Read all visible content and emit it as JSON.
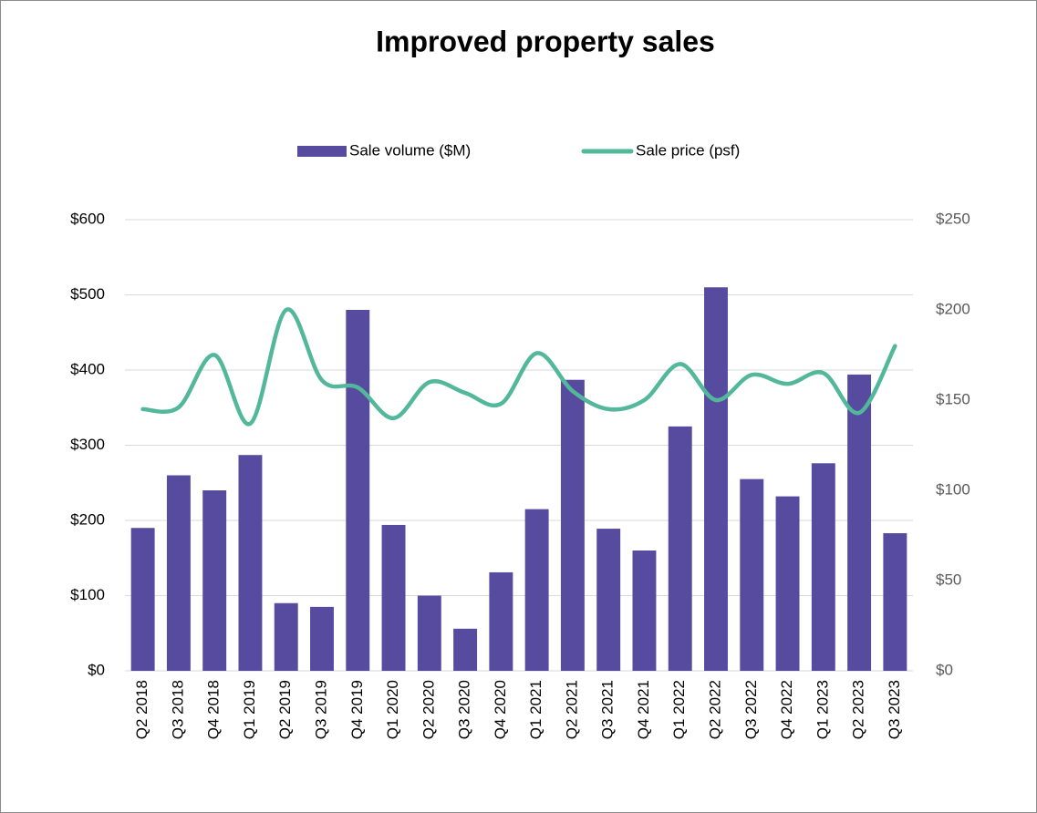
{
  "chart_data": {
    "type": "combo",
    "title": "Improved property sales",
    "categories": [
      "Q2 2018",
      "Q3 2018",
      "Q4 2018",
      "Q1 2019",
      "Q2 2019",
      "Q3 2019",
      "Q4 2019",
      "Q1 2020",
      "Q2 2020",
      "Q3 2020",
      "Q4 2020",
      "Q1 2021",
      "Q2 2021",
      "Q3 2021",
      "Q4 2021",
      "Q1 2022",
      "Q2 2022",
      "Q3 2022",
      "Q4 2022",
      "Q1 2023",
      "Q2 2023",
      "Q3 2023"
    ],
    "series": [
      {
        "name": "Sale volume ($M)",
        "type": "bar",
        "color": "#574b9f",
        "values": [
          190,
          260,
          240,
          287,
          90,
          85,
          480,
          194,
          100,
          56,
          131,
          215,
          387,
          189,
          160,
          325,
          510,
          255,
          232,
          276,
          394,
          183
        ]
      },
      {
        "name": "Sale price (psf)",
        "type": "line",
        "axis": "y2",
        "color": "#52b79b",
        "values": [
          145,
          146,
          175,
          137,
          200,
          161,
          157,
          140,
          160,
          154,
          148,
          176,
          155,
          145,
          150,
          170,
          150,
          164,
          159,
          165,
          143,
          180
        ]
      }
    ],
    "ylim": [
      0,
      600
    ],
    "yticks": [
      {
        "value": 0,
        "label": "$0"
      },
      {
        "value": 100,
        "label": "$100"
      },
      {
        "value": 200,
        "label": "$200"
      },
      {
        "value": 300,
        "label": "$300"
      },
      {
        "value": 400,
        "label": "$400"
      },
      {
        "value": 500,
        "label": "$500"
      },
      {
        "value": 600,
        "label": "$600"
      }
    ],
    "y2lim": [
      0,
      250
    ],
    "y2ticks": [
      {
        "value": 0,
        "label": "$0"
      },
      {
        "value": 50,
        "label": "$50"
      },
      {
        "value": 100,
        "label": "$100"
      },
      {
        "value": 150,
        "label": "$150"
      },
      {
        "value": 200,
        "label": "$200"
      },
      {
        "value": 250,
        "label": "$250"
      }
    ],
    "grid": true,
    "legend": "top"
  }
}
